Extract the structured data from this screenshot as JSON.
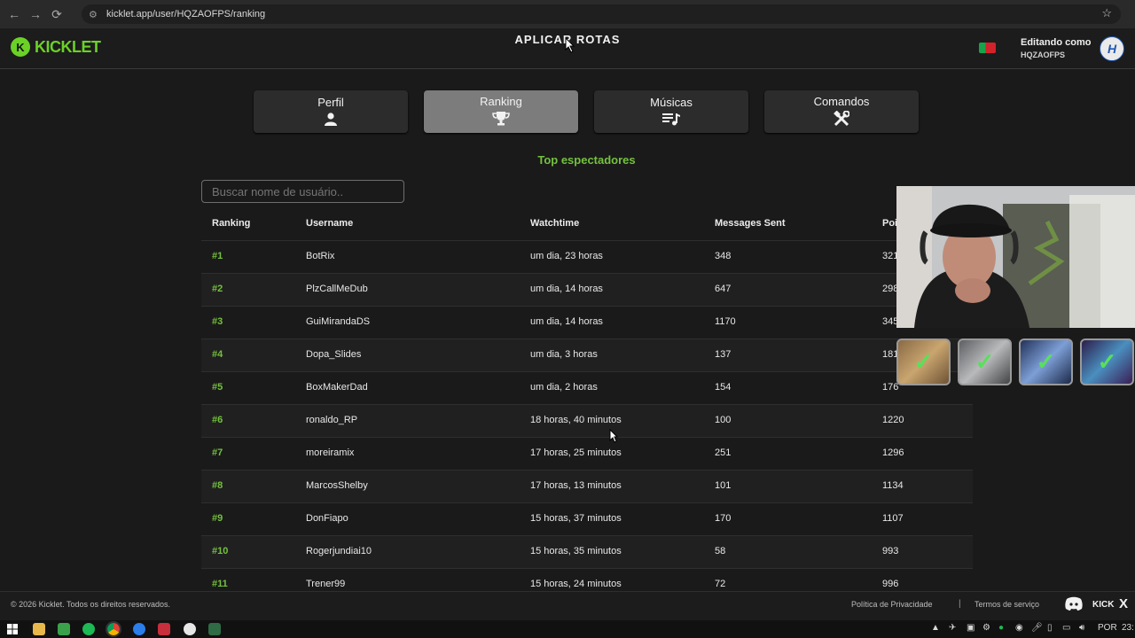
{
  "browser": {
    "url": "kicklet.app/user/HQZAOFPS/ranking"
  },
  "header": {
    "logo_text": "KICKLET",
    "center_title": "APLICAR ROTAS",
    "editing_label": "Editando como",
    "editing_user": "HQZAOFPS"
  },
  "tabs": [
    {
      "label": "Perfil",
      "icon": "user-icon",
      "active": false
    },
    {
      "label": "Ranking",
      "icon": "trophy-icon",
      "active": true
    },
    {
      "label": "Músicas",
      "icon": "music-list-icon",
      "active": false
    },
    {
      "label": "Comandos",
      "icon": "tools-icon",
      "active": false
    }
  ],
  "section_title": "Top espectadores",
  "search": {
    "placeholder": "Buscar nome de usuário.."
  },
  "table": {
    "headers": [
      "Ranking",
      "Username",
      "Watchtime",
      "Messages Sent",
      "Poi"
    ],
    "rows": [
      {
        "rank": "#1",
        "user": "BotRix",
        "watch": "um dia, 23 horas",
        "msgs": "348",
        "points": "321"
      },
      {
        "rank": "#2",
        "user": "PlzCallMeDub",
        "watch": "um dia, 14 horas",
        "msgs": "647",
        "points": "298"
      },
      {
        "rank": "#3",
        "user": "GuiMirandaDS",
        "watch": "um dia, 14 horas",
        "msgs": "1170",
        "points": "345"
      },
      {
        "rank": "#4",
        "user": "Dopa_Slides",
        "watch": "um dia, 3 horas",
        "msgs": "137",
        "points": "181"
      },
      {
        "rank": "#5",
        "user": "BoxMakerDad",
        "watch": "um dia, 2 horas",
        "msgs": "154",
        "points": "176"
      },
      {
        "rank": "#6",
        "user": "ronaldo_RP",
        "watch": "18 horas, 40 minutos",
        "msgs": "100",
        "points": "1220"
      },
      {
        "rank": "#7",
        "user": "moreiramix",
        "watch": "17 horas, 25 minutos",
        "msgs": "251",
        "points": "1296"
      },
      {
        "rank": "#8",
        "user": "MarcosShelby",
        "watch": "17 horas, 13 minutos",
        "msgs": "101",
        "points": "1134"
      },
      {
        "rank": "#9",
        "user": "DonFiapo",
        "watch": "15 horas, 37 minutos",
        "msgs": "170",
        "points": "1107"
      },
      {
        "rank": "#10",
        "user": "Rogerjundiai10",
        "watch": "15 horas, 35 minutos",
        "msgs": "58",
        "points": "993"
      },
      {
        "rank": "#11",
        "user": "Trener99",
        "watch": "15 horas, 24 minutos",
        "msgs": "72",
        "points": "996"
      }
    ]
  },
  "footer": {
    "copyright": "© 2026 Kicklet. Todos os direitos reservados.",
    "privacy": "Política de Privacidade",
    "separator": "|",
    "terms": "Termos de serviço",
    "kick": "KICK",
    "x": "X"
  },
  "taskbar": {
    "lang": "POR",
    "time": "23:"
  },
  "colors": {
    "accent": "#74c13e",
    "logo": "#6bd127",
    "active_tab": "#7c7c7c"
  }
}
